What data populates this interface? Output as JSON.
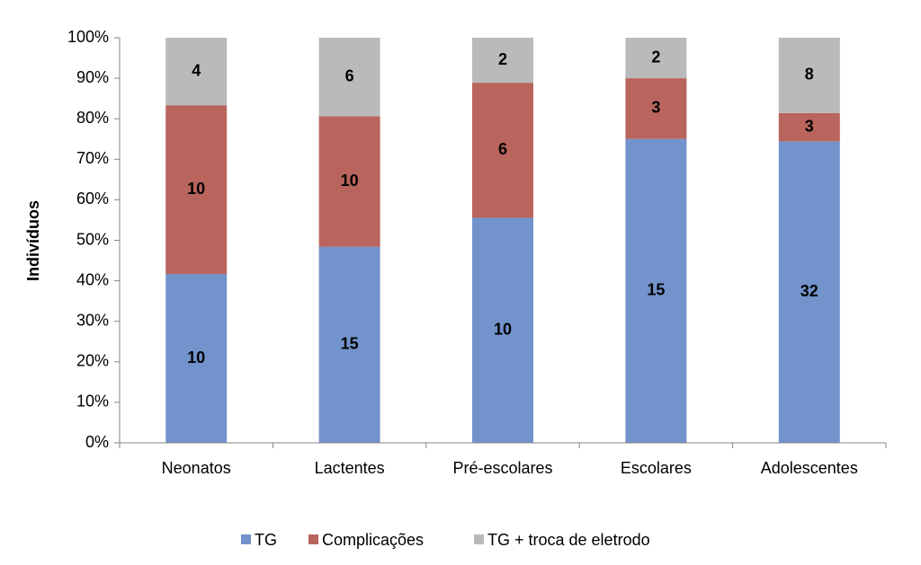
{
  "chart_data": {
    "type": "bar",
    "stacking": "percent",
    "y_label": "Indivíduos",
    "categories": [
      "Neonatos",
      "Lactentes",
      "Pré-escolares",
      "Escolares",
      "Adolescentes"
    ],
    "series": [
      {
        "name": "TG",
        "color": "#7293cb",
        "values": [
          10,
          15,
          10,
          15,
          32
        ]
      },
      {
        "name": "Complicações",
        "color": "#b9655d",
        "values": [
          10,
          10,
          6,
          3,
          3
        ]
      },
      {
        "name": "TG + troca de eletrodo",
        "color": "#bababa",
        "values": [
          4,
          6,
          2,
          2,
          8
        ]
      }
    ],
    "ylim": [
      0,
      100
    ],
    "yticks": [
      {
        "value": 0,
        "label": "0%"
      },
      {
        "value": 10,
        "label": "10%"
      },
      {
        "value": 20,
        "label": "20%"
      },
      {
        "value": 30,
        "label": "30%"
      },
      {
        "value": 40,
        "label": "40%"
      },
      {
        "value": 50,
        "label": "50%"
      },
      {
        "value": 60,
        "label": "60%"
      },
      {
        "value": 70,
        "label": "70%"
      },
      {
        "value": 80,
        "label": "80%"
      },
      {
        "value": 90,
        "label": "90%"
      },
      {
        "value": 100,
        "label": "100%"
      }
    ],
    "legend": "bottom"
  }
}
